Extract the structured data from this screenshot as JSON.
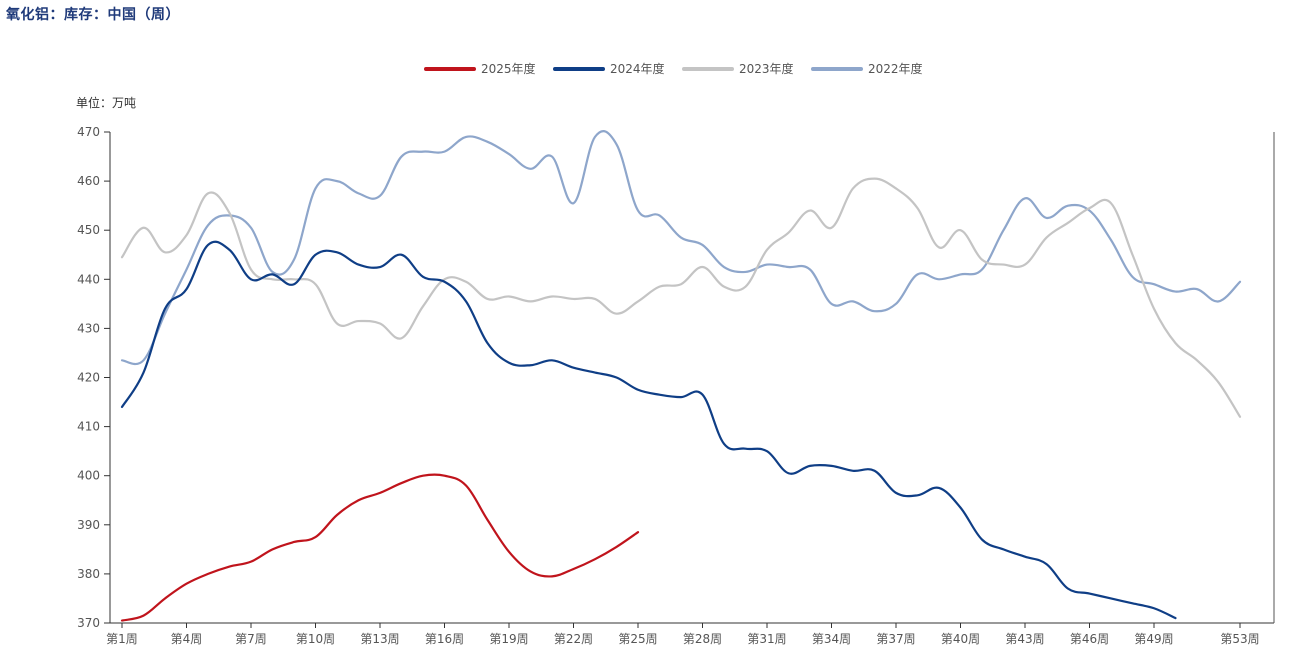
{
  "page_title": "氧化铝：库存：中国（周）",
  "chart_data": {
    "type": "line",
    "title": "氧化铝：库存：中国（周）",
    "unit_label": "单位：万吨",
    "ylim": [
      370,
      470
    ],
    "yticks": [
      370,
      380,
      390,
      400,
      410,
      420,
      430,
      440,
      450,
      460,
      470
    ],
    "xlim": [
      1,
      53
    ],
    "xticks": [
      1,
      4,
      7,
      10,
      13,
      16,
      19,
      22,
      25,
      28,
      31,
      34,
      37,
      40,
      43,
      46,
      49,
      53
    ],
    "xtick_labels": [
      "第1周",
      "第4周",
      "第7周",
      "第10周",
      "第13周",
      "第16周",
      "第19周",
      "第22周",
      "第25周",
      "第28周",
      "第31周",
      "第34周",
      "第37周",
      "第40周",
      "第43周",
      "第46周",
      "第49周",
      "第53周"
    ],
    "legend_position": "top-center",
    "series": [
      {
        "name": "2025年度",
        "color": "#c0141c",
        "values": [
          370.5,
          371.5,
          375,
          378,
          380,
          381.5,
          382.5,
          385,
          386.5,
          387.5,
          392,
          395,
          396.5,
          398.5,
          400,
          400,
          398,
          391,
          384.5,
          380.5,
          379.5,
          381,
          383,
          385.5,
          388.5
        ]
      },
      {
        "name": "2024年度",
        "color": "#0f3e86",
        "values": [
          414,
          421,
          434,
          438,
          447,
          446,
          440,
          441,
          439,
          445,
          445.5,
          443,
          442.5,
          445,
          440.5,
          439.5,
          435.5,
          427,
          423,
          422.5,
          423.5,
          422,
          421,
          420,
          417.5,
          416.5,
          416,
          416.5,
          406.5,
          405.5,
          405,
          400.5,
          402,
          402,
          401,
          401,
          396.5,
          396,
          397.5,
          393.5,
          387,
          385,
          383.5,
          382,
          377,
          376,
          375,
          374,
          373,
          371
        ]
      },
      {
        "name": "2023年度",
        "color": "#c4c4c4",
        "values": [
          444.5,
          450.5,
          445.5,
          449,
          457.5,
          453.5,
          442,
          440,
          440,
          439,
          431,
          431.5,
          431,
          428,
          434.5,
          440,
          439.5,
          436,
          436.5,
          435.5,
          436.5,
          436,
          436,
          433,
          435.5,
          438.5,
          439,
          442.5,
          438.5,
          438.5,
          446,
          449.5,
          454,
          450.5,
          458.5,
          460.5,
          458.5,
          454.5,
          446.5,
          450,
          444,
          443,
          443,
          448.5,
          451.5,
          454.5,
          455.5,
          445,
          434,
          427,
          423.5,
          419,
          412
        ]
      },
      {
        "name": "2022年度",
        "color": "#8ea6cb",
        "values": [
          423.5,
          423.5,
          433,
          442,
          451,
          453,
          450.5,
          441.5,
          444,
          458.5,
          460,
          457.5,
          457,
          465,
          466,
          466,
          469,
          468,
          465.5,
          462.5,
          465,
          455.5,
          469,
          467.5,
          454,
          453,
          448.5,
          447,
          442.5,
          441.5,
          443,
          442.5,
          442,
          435,
          435.5,
          433.5,
          435,
          441,
          440,
          441,
          442,
          450,
          456.5,
          452.5,
          455,
          454,
          448,
          440.5,
          439,
          437.5,
          438,
          435.5,
          439.5
        ]
      }
    ]
  }
}
